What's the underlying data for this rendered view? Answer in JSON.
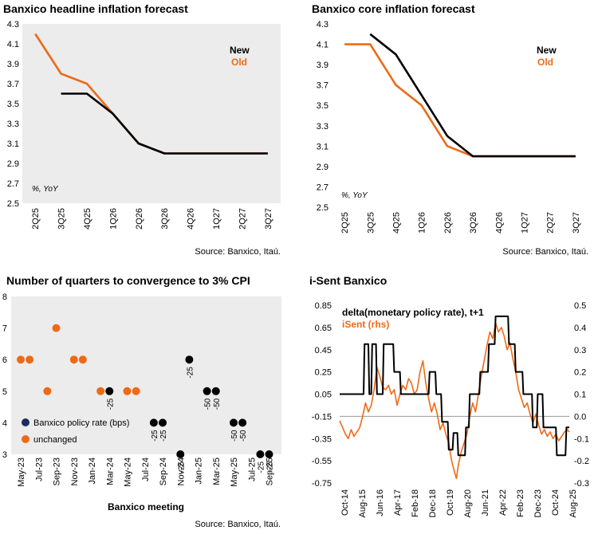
{
  "chart_data": [
    {
      "type": "line",
      "title": "Banxico headline inflation forecast",
      "unit_label": "%, YoY",
      "source": "Source: Banxico, Itaú.",
      "categories": [
        "2Q25",
        "3Q25",
        "4Q25",
        "1Q26",
        "2Q26",
        "3Q26",
        "4Q26",
        "1Q27",
        "2Q27",
        "3Q27"
      ],
      "ylim": [
        2.5,
        4.3
      ],
      "yticks": [
        "4.3",
        "4.1",
        "3.9",
        "3.7",
        "3.5",
        "3.3",
        "3.1",
        "2.9",
        "2.7",
        "2.5"
      ],
      "legend": [
        "New",
        "Old"
      ],
      "series": [
        {
          "name": "New",
          "color": "#000000",
          "values": [
            null,
            3.6,
            3.6,
            3.4,
            3.1,
            3.0,
            3.0,
            3.0,
            3.0,
            3.0
          ]
        },
        {
          "name": "Old",
          "color": "#ee6a17",
          "values": [
            4.2,
            3.8,
            3.7,
            3.4,
            3.1,
            3.0,
            3.0,
            3.0,
            3.0,
            3.0
          ]
        }
      ]
    },
    {
      "type": "line",
      "title": "Banxico core inflation forecast",
      "unit_label": "%, YoY",
      "source": "Source: Banxico, Itaú.",
      "categories": [
        "2Q25",
        "3Q25",
        "4Q25",
        "1Q26",
        "2Q26",
        "3Q26",
        "4Q26",
        "1Q27",
        "2Q27",
        "3Q27"
      ],
      "ylim": [
        2.5,
        4.3
      ],
      "yticks": [
        "4.3",
        "4.1",
        "3.9",
        "3.7",
        "3.5",
        "3.3",
        "3.1",
        "2.9",
        "2.7",
        "2.5"
      ],
      "legend": [
        "New",
        "Old"
      ],
      "series": [
        {
          "name": "New",
          "color": "#000000",
          "values": [
            null,
            4.2,
            4.0,
            3.6,
            3.2,
            3.0,
            3.0,
            3.0,
            3.0,
            3.0
          ]
        },
        {
          "name": "Old",
          "color": "#ee6a17",
          "values": [
            4.1,
            4.1,
            3.7,
            3.5,
            3.1,
            3.0,
            3.0,
            3.0,
            3.0,
            3.0
          ]
        }
      ]
    },
    {
      "type": "scatter",
      "title": "Number of quarters to convergence to 3%  CPI",
      "xlabel": "Banxico meeting",
      "source": "Source: Banxico, Itaú.",
      "ylim": [
        3,
        8
      ],
      "yticks": [
        "8",
        "7",
        "6",
        "5",
        "4",
        "3"
      ],
      "x_ticks": [
        "May-23",
        "Jul-23",
        "Sep-23",
        "Nov-23",
        "Jan-24",
        "Mar-24",
        "May-24",
        "Jul-24",
        "Sep-24",
        "Nov-24",
        "Jan-25",
        "Mar-25",
        "May-25",
        "Jul-25",
        "Sep-25"
      ],
      "legend": [
        "Banxico policy rate (bps)",
        "unchanged"
      ],
      "legend_colors": [
        "#1b2d5c",
        "#ee6a17"
      ],
      "point_colors": {
        "cut": "#000000",
        "unchanged": "#ee6a17"
      },
      "points": [
        {
          "x": 0,
          "y": 6,
          "kind": "unchanged",
          "label": ""
        },
        {
          "x": 0.5,
          "y": 6,
          "kind": "unchanged",
          "label": ""
        },
        {
          "x": 1.5,
          "y": 5,
          "kind": "unchanged",
          "label": ""
        },
        {
          "x": 2,
          "y": 7,
          "kind": "unchanged",
          "label": ""
        },
        {
          "x": 3,
          "y": 6,
          "kind": "unchanged",
          "label": ""
        },
        {
          "x": 3.5,
          "y": 6,
          "kind": "unchanged",
          "label": ""
        },
        {
          "x": 4.5,
          "y": 5,
          "kind": "unchanged",
          "label": ""
        },
        {
          "x": 5,
          "y": 5,
          "kind": "cut",
          "label": "-25"
        },
        {
          "x": 6,
          "y": 5,
          "kind": "unchanged",
          "label": ""
        },
        {
          "x": 6.5,
          "y": 5,
          "kind": "unchanged",
          "label": ""
        },
        {
          "x": 7.5,
          "y": 4,
          "kind": "cut",
          "label": "-25"
        },
        {
          "x": 8,
          "y": 4,
          "kind": "cut",
          "label": "-25"
        },
        {
          "x": 9,
          "y": 3,
          "kind": "cut",
          "label": "-25"
        },
        {
          "x": 9.5,
          "y": 6,
          "kind": "cut",
          "label": "-25"
        },
        {
          "x": 10.5,
          "y": 5,
          "kind": "cut",
          "label": "-50"
        },
        {
          "x": 11,
          "y": 5,
          "kind": "cut",
          "label": "-50"
        },
        {
          "x": 12,
          "y": 4,
          "kind": "cut",
          "label": "-50"
        },
        {
          "x": 12.5,
          "y": 4,
          "kind": "cut",
          "label": "-50"
        },
        {
          "x": 13.5,
          "y": 3,
          "kind": "cut",
          "label": "-25"
        },
        {
          "x": 14,
          "y": 3,
          "kind": "cut",
          "label": "-25"
        }
      ]
    },
    {
      "type": "line",
      "title": "i-Sent Banxico",
      "source": "",
      "x_ticks": [
        "Oct-14",
        "Aug-15",
        "Jun-16",
        "Apr-17",
        "Feb-18",
        "Dec-18",
        "Oct-19",
        "Aug-20",
        "Jun-21",
        "Apr-22",
        "Feb-23",
        "Dec-23",
        "Oct-24",
        "Aug-25"
      ],
      "ylim_left": [
        -0.75,
        0.85
      ],
      "ylim_right": [
        -0.3,
        0.5
      ],
      "yticks_left": [
        "0.85",
        "0.65",
        "0.45",
        "0.25",
        "0.05",
        "-0.15",
        "-0.35",
        "-0.55",
        "-0.75"
      ],
      "yticks_right": [
        "0.5",
        "0.4",
        "0.3",
        "0.2",
        "0.1",
        "0.0",
        "-0.1",
        "-0.2",
        "-0.3"
      ],
      "legend": [
        "delta(monetary policy rate), t+1",
        "iSent (rhs)"
      ],
      "series": [
        {
          "name": "delta(monetary policy rate), t+1",
          "axis": "left",
          "color": "#000000",
          "points": [
            [
              0,
              0.05
            ],
            [
              2.5,
              0.05
            ],
            [
              2.6,
              0.5
            ],
            [
              3,
              0.5
            ],
            [
              3.1,
              0.05
            ],
            [
              3.3,
              0.05
            ],
            [
              3.4,
              0.5
            ],
            [
              3.8,
              0.5
            ],
            [
              3.9,
              0.05
            ],
            [
              4.5,
              0.05
            ],
            [
              4.6,
              0.5
            ],
            [
              5.6,
              0.5
            ],
            [
              5.7,
              0.25
            ],
            [
              6.3,
              0.25
            ],
            [
              6.4,
              0.05
            ],
            [
              9.3,
              0.05
            ],
            [
              9.4,
              0.25
            ],
            [
              10,
              0.25
            ],
            [
              10.1,
              0.05
            ],
            [
              10.6,
              0.05
            ],
            [
              10.7,
              -0.2
            ],
            [
              11.3,
              -0.2
            ],
            [
              11.4,
              -0.45
            ],
            [
              11.8,
              -0.45
            ],
            [
              11.9,
              -0.3
            ],
            [
              12.3,
              -0.3
            ],
            [
              12.4,
              -0.5
            ],
            [
              13.1,
              -0.5
            ],
            [
              13.2,
              -0.25
            ],
            [
              13.5,
              -0.25
            ],
            [
              13.6,
              0.05
            ],
            [
              14.6,
              0.05
            ],
            [
              14.7,
              0.25
            ],
            [
              15.5,
              0.25
            ],
            [
              15.6,
              0.5
            ],
            [
              16.2,
              0.5
            ],
            [
              16.3,
              0.75
            ],
            [
              17.6,
              0.75
            ],
            [
              17.7,
              0.5
            ],
            [
              18.3,
              0.5
            ],
            [
              18.4,
              0.25
            ],
            [
              19.1,
              0.25
            ],
            [
              19.2,
              0.05
            ],
            [
              20.1,
              0.05
            ],
            [
              20.2,
              -0.25
            ],
            [
              20.6,
              -0.25
            ],
            [
              20.7,
              0.05
            ],
            [
              21.2,
              0.05
            ],
            [
              21.3,
              -0.25
            ],
            [
              22.6,
              -0.25
            ],
            [
              22.7,
              -0.5
            ],
            [
              23.6,
              -0.5
            ],
            [
              23.7,
              -0.25
            ],
            [
              24,
              -0.25
            ]
          ]
        },
        {
          "name": "iSent (rhs)",
          "axis": "right",
          "color": "#ee6a17",
          "points": [
            [
              0,
              -0.02
            ],
            [
              0.3,
              -0.05
            ],
            [
              0.6,
              -0.08
            ],
            [
              0.9,
              -0.1
            ],
            [
              1.2,
              -0.06
            ],
            [
              1.5,
              -0.09
            ],
            [
              1.8,
              -0.07
            ],
            [
              2.1,
              -0.05
            ],
            [
              2.4,
              0.0
            ],
            [
              2.7,
              0.06
            ],
            [
              3,
              0.02
            ],
            [
              3.3,
              0.05
            ],
            [
              3.6,
              0.12
            ],
            [
              3.9,
              0.22
            ],
            [
              4.2,
              0.18
            ],
            [
              4.5,
              0.13
            ],
            [
              4.8,
              0.12
            ],
            [
              5.1,
              0.14
            ],
            [
              5.4,
              0.1
            ],
            [
              5.7,
              0.12
            ],
            [
              6,
              0.05
            ],
            [
              6.3,
              0.1
            ],
            [
              6.6,
              0.14
            ],
            [
              6.9,
              0.12
            ],
            [
              7.2,
              0.17
            ],
            [
              7.5,
              0.15
            ],
            [
              7.8,
              0.1
            ],
            [
              8.1,
              0.12
            ],
            [
              8.4,
              0.2
            ],
            [
              8.7,
              0.25
            ],
            [
              9,
              0.15
            ],
            [
              9.3,
              0.08
            ],
            [
              9.6,
              0.02
            ],
            [
              9.9,
              0.06
            ],
            [
              10.2,
              0.01
            ],
            [
              10.5,
              -0.06
            ],
            [
              10.8,
              -0.03
            ],
            [
              11.1,
              -0.08
            ],
            [
              11.4,
              -0.12
            ],
            [
              11.7,
              -0.2
            ],
            [
              12,
              -0.25
            ],
            [
              12.2,
              -0.28
            ],
            [
              12.4,
              -0.22
            ],
            [
              12.7,
              -0.16
            ],
            [
              13,
              -0.12
            ],
            [
              13.3,
              -0.08
            ],
            [
              13.6,
              0.0
            ],
            [
              13.9,
              0.06
            ],
            [
              14.2,
              0.02
            ],
            [
              14.5,
              0.1
            ],
            [
              14.8,
              0.18
            ],
            [
              15.1,
              0.25
            ],
            [
              15.4,
              0.32
            ],
            [
              15.7,
              0.38
            ],
            [
              16,
              0.35
            ],
            [
              16.3,
              0.42
            ],
            [
              16.6,
              0.38
            ],
            [
              16.9,
              0.4
            ],
            [
              17.2,
              0.36
            ],
            [
              17.5,
              0.3
            ],
            [
              17.8,
              0.33
            ],
            [
              18.1,
              0.26
            ],
            [
              18.4,
              0.2
            ],
            [
              18.7,
              0.12
            ],
            [
              19,
              0.08
            ],
            [
              19.3,
              0.04
            ],
            [
              19.6,
              0.06
            ],
            [
              19.9,
              0.01
            ],
            [
              20.2,
              -0.03
            ],
            [
              20.5,
              0.01
            ],
            [
              20.8,
              -0.04
            ],
            [
              21.1,
              -0.08
            ],
            [
              21.4,
              -0.06
            ],
            [
              21.7,
              -0.09
            ],
            [
              22,
              -0.07
            ],
            [
              22.3,
              -0.1
            ],
            [
              22.6,
              -0.08
            ],
            [
              22.9,
              -0.11
            ],
            [
              23.2,
              -0.09
            ],
            [
              23.5,
              -0.07
            ],
            [
              23.8,
              -0.06
            ],
            [
              24,
              -0.07
            ]
          ]
        }
      ]
    }
  ]
}
